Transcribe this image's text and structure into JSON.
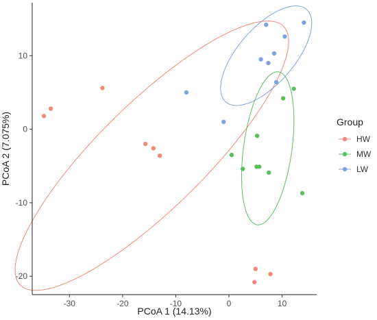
{
  "chart_data": {
    "type": "scatter",
    "xlabel": "PCoA 1 (14.13%)",
    "ylabel": "PCoA 2 (7.075%)",
    "xlim": [
      -37,
      16.5
    ],
    "ylim": [
      -22.5,
      17.2
    ],
    "x_ticks": [
      -30,
      -20,
      -10,
      0,
      10
    ],
    "y_ticks": [
      -20,
      -10,
      0,
      10
    ],
    "grid": false,
    "legend": {
      "title": "Group",
      "position": "right"
    },
    "series": [
      {
        "name": "HW",
        "color": "#F08A7A",
        "points": [
          [
            -34.8,
            1.8
          ],
          [
            -33.5,
            2.8
          ],
          [
            -23.8,
            5.6
          ],
          [
            -15.7,
            -2.0
          ],
          [
            -14.2,
            -2.6
          ],
          [
            -13.0,
            -3.6
          ],
          [
            4.8,
            -20.8
          ],
          [
            5.0,
            -19.0
          ],
          [
            7.8,
            -19.7
          ]
        ],
        "ellipse": {
          "cx": -14.5,
          "cy": -3.6,
          "rx": 30.5,
          "ry": 8.2,
          "angle_deg": 33.9
        }
      },
      {
        "name": "MW",
        "color": "#5CBF5F",
        "points": [
          [
            12.2,
            5.5
          ],
          [
            10.2,
            4.2
          ],
          [
            5.3,
            -0.9
          ],
          [
            0.5,
            -3.5
          ],
          [
            2.6,
            -5.4
          ],
          [
            5.2,
            -5.1
          ],
          [
            5.7,
            -5.1
          ],
          [
            7.5,
            -5.9
          ],
          [
            13.8,
            -8.7
          ]
        ],
        "ellipse": {
          "cx": 7.3,
          "cy": -2.6,
          "rx": 10.6,
          "ry": 4.5,
          "angle_deg": 78
        }
      },
      {
        "name": "LW",
        "color": "#7FA2DC",
        "points": [
          [
            7.0,
            14.2
          ],
          [
            10.5,
            12.6
          ],
          [
            14.1,
            14.5
          ],
          [
            6.0,
            9.5
          ],
          [
            7.4,
            9.0
          ],
          [
            8.5,
            10.3
          ],
          [
            8.9,
            6.4
          ],
          [
            -8.0,
            5.0
          ],
          [
            -1.0,
            1.0
          ]
        ],
        "ellipse": {
          "cx": 7.0,
          "cy": 10.0,
          "rx": 10.0,
          "ry": 4.4,
          "angle_deg": 35
        }
      }
    ]
  }
}
